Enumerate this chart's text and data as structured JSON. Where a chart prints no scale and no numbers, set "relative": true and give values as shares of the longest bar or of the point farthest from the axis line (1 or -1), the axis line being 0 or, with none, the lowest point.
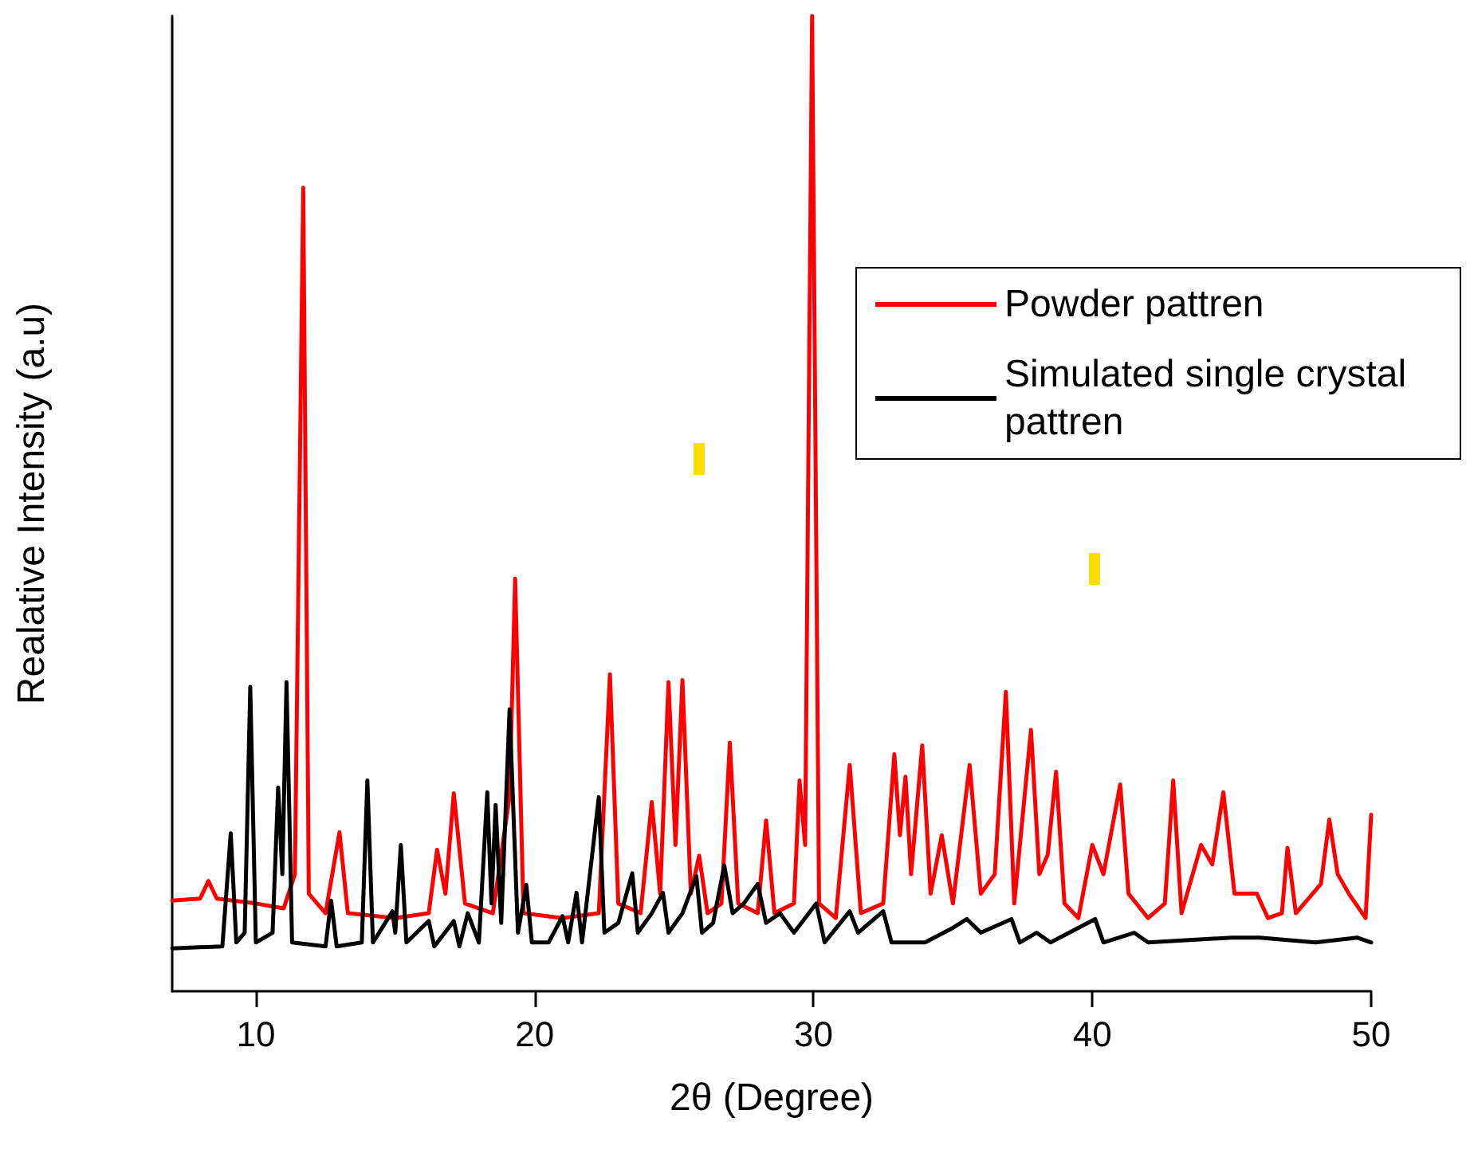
{
  "chart_data": {
    "type": "line",
    "xlabel": "2θ (Degree)",
    "ylabel": "Realative Intensity (a.u)",
    "relative": true,
    "xlim": [
      7,
      50
    ],
    "xticks": [
      10,
      20,
      30,
      40,
      50
    ],
    "grid": false,
    "legend": "right",
    "marker": "none",
    "line_style": "solid",
    "series": [
      {
        "name": "Powder pattren",
        "color": "#ff0000",
        "x": [
          7.0,
          8.0,
          8.3,
          8.6,
          10.0,
          11.0,
          11.4,
          11.7,
          11.9,
          12.5,
          13.0,
          13.3,
          15.0,
          16.2,
          16.5,
          16.8,
          17.1,
          17.5,
          18.5,
          19.1,
          19.3,
          19.6,
          21.0,
          22.3,
          22.7,
          23.0,
          23.8,
          24.2,
          24.5,
          24.8,
          25.05,
          25.3,
          25.6,
          25.9,
          26.2,
          26.7,
          27.0,
          27.3,
          28.0,
          28.3,
          28.6,
          29.3,
          29.5,
          29.7,
          29.95,
          30.2,
          30.8,
          31.3,
          31.7,
          32.5,
          32.9,
          33.1,
          33.3,
          33.5,
          33.9,
          34.2,
          34.6,
          35.0,
          35.6,
          36.0,
          36.5,
          36.9,
          37.2,
          37.8,
          38.1,
          38.4,
          38.7,
          39.0,
          39.5,
          40.0,
          40.4,
          41.0,
          41.3,
          42.0,
          42.6,
          42.9,
          43.2,
          43.9,
          44.3,
          44.7,
          45.1,
          45.5,
          45.9,
          46.3,
          46.8,
          47.0,
          47.3,
          48.2,
          48.5,
          48.8,
          49.2,
          49.8,
          50.0
        ],
        "values": [
          0.093,
          0.095,
          0.113,
          0.095,
          0.09,
          0.085,
          0.12,
          0.824,
          0.1,
          0.08,
          0.163,
          0.08,
          0.075,
          0.08,
          0.145,
          0.1,
          0.203,
          0.09,
          0.08,
          0.2,
          0.423,
          0.08,
          0.075,
          0.08,
          0.325,
          0.09,
          0.08,
          0.194,
          0.1,
          0.317,
          0.15,
          0.319,
          0.1,
          0.139,
          0.08,
          0.09,
          0.255,
          0.09,
          0.08,
          0.175,
          0.08,
          0.09,
          0.216,
          0.15,
          1.0,
          0.09,
          0.075,
          0.232,
          0.08,
          0.09,
          0.243,
          0.16,
          0.22,
          0.12,
          0.252,
          0.1,
          0.16,
          0.09,
          0.232,
          0.1,
          0.12,
          0.307,
          0.09,
          0.268,
          0.12,
          0.14,
          0.225,
          0.09,
          0.075,
          0.15,
          0.12,
          0.212,
          0.1,
          0.075,
          0.09,
          0.216,
          0.08,
          0.15,
          0.13,
          0.204,
          0.1,
          0.1,
          0.1,
          0.075,
          0.08,
          0.147,
          0.08,
          0.11,
          0.176,
          0.12,
          0.1,
          0.075,
          0.181
        ]
      },
      {
        "name": "Simulated single crystal pattren",
        "color": "#000000",
        "x": [
          7.0,
          8.8,
          9.1,
          9.3,
          9.6,
          9.8,
          10.0,
          10.6,
          10.8,
          10.95,
          11.1,
          11.3,
          12.5,
          12.7,
          12.9,
          13.8,
          14.0,
          14.2,
          14.9,
          15.0,
          15.2,
          15.4,
          16.2,
          16.4,
          17.1,
          17.3,
          17.6,
          18.0,
          18.3,
          18.45,
          18.6,
          18.8,
          19.1,
          19.4,
          19.7,
          19.9,
          20.5,
          21.0,
          21.2,
          21.5,
          21.7,
          22.3,
          22.5,
          23.0,
          23.5,
          23.7,
          24.2,
          24.6,
          24.8,
          25.3,
          25.8,
          26.0,
          26.4,
          26.8,
          27.1,
          27.5,
          28.0,
          28.3,
          28.8,
          29.3,
          30.1,
          30.4,
          31.3,
          31.6,
          32.5,
          32.8,
          34.0,
          35.0,
          35.5,
          36.0,
          37.1,
          37.4,
          38.0,
          38.5,
          40.1,
          40.4,
          41.5,
          42.0,
          45.0,
          46.0,
          48.0,
          49.5,
          50.0
        ],
        "values": [
          0.044,
          0.046,
          0.162,
          0.05,
          0.06,
          0.312,
          0.05,
          0.06,
          0.209,
          0.12,
          0.317,
          0.05,
          0.046,
          0.093,
          0.046,
          0.05,
          0.216,
          0.05,
          0.082,
          0.06,
          0.15,
          0.05,
          0.072,
          0.046,
          0.072,
          0.046,
          0.08,
          0.05,
          0.204,
          0.09,
          0.191,
          0.07,
          0.289,
          0.06,
          0.109,
          0.05,
          0.05,
          0.077,
          0.05,
          0.101,
          0.05,
          0.199,
          0.06,
          0.07,
          0.121,
          0.06,
          0.08,
          0.101,
          0.06,
          0.08,
          0.118,
          0.06,
          0.07,
          0.129,
          0.08,
          0.09,
          0.11,
          0.07,
          0.08,
          0.06,
          0.09,
          0.05,
          0.082,
          0.06,
          0.082,
          0.05,
          0.05,
          0.065,
          0.074,
          0.06,
          0.074,
          0.05,
          0.06,
          0.05,
          0.074,
          0.05,
          0.06,
          0.05,
          0.055,
          0.055,
          0.05,
          0.055,
          0.05
        ]
      }
    ]
  }
}
